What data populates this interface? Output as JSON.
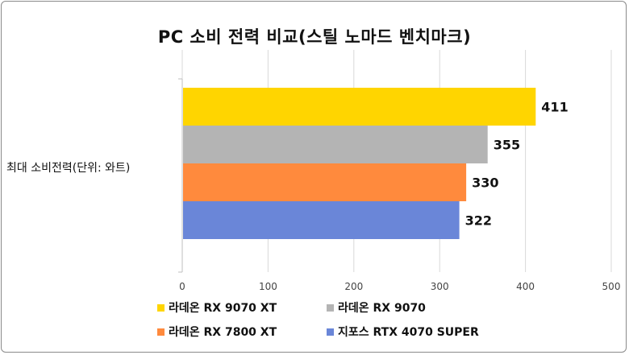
{
  "chart_data": {
    "type": "bar",
    "orientation": "horizontal",
    "title": "PC 소비 전력 비교(스틸 노마드 벤치마크)",
    "category_label": "최대 소비전력(단위: 와트)",
    "xlim": [
      0,
      500
    ],
    "xticks": [
      "0",
      "100",
      "200",
      "300",
      "400",
      "500"
    ],
    "grid": "vertical",
    "legend_position": "bottom",
    "series": [
      {
        "name": "라데온 RX 9070 XT",
        "value": 411,
        "label": "411",
        "color": "#FFD500"
      },
      {
        "name": "라데온 RX 9070",
        "value": 355,
        "label": "355",
        "color": "#B4B4B4"
      },
      {
        "name": "라데온 RX 7800 XT",
        "value": 330,
        "label": "330",
        "color": "#FF8A3D"
      },
      {
        "name": "지포스 RTX 4070 SUPER",
        "value": 322,
        "label": "322",
        "color": "#6A86D8"
      }
    ]
  }
}
